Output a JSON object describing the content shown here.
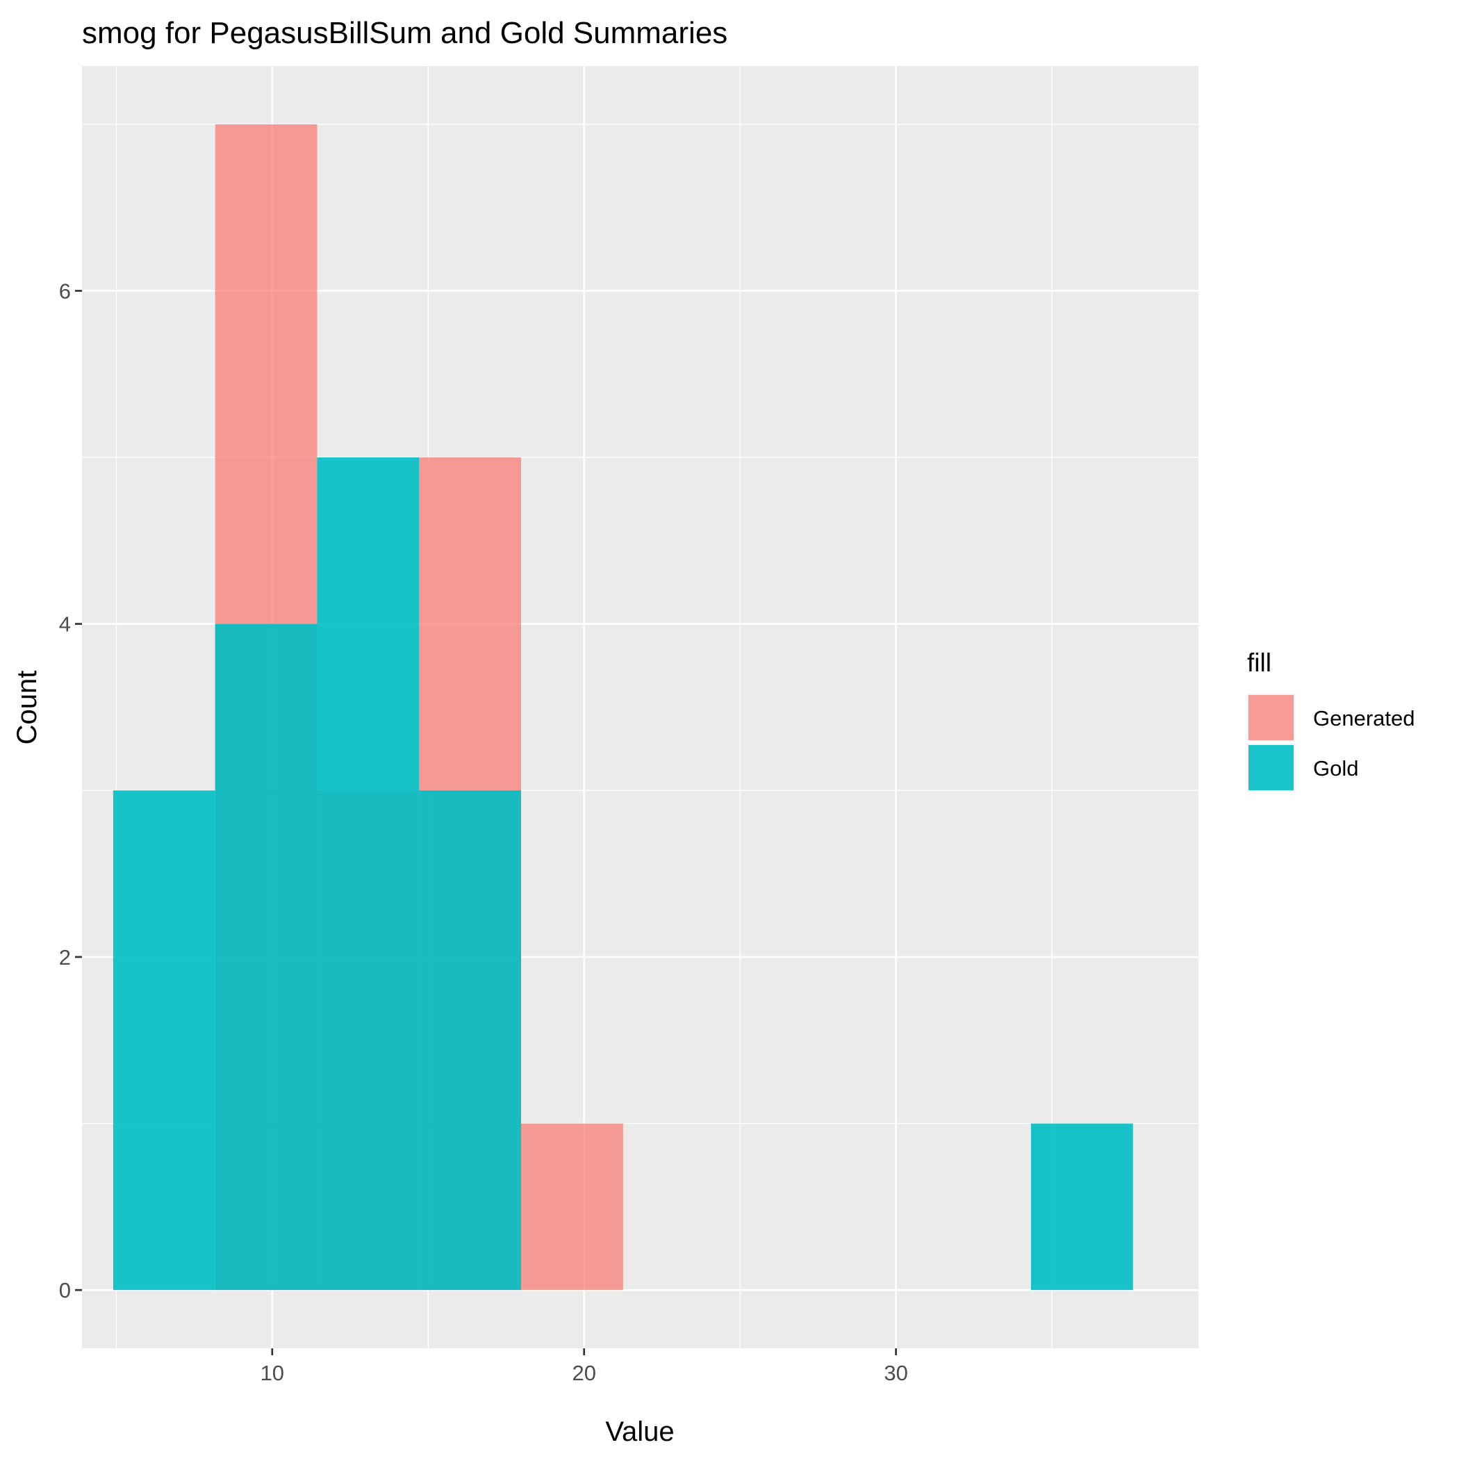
{
  "chart_data": {
    "type": "histogram",
    "title": "smog for PegasusBillSum and Gold Summaries",
    "xlabel": "Value",
    "ylabel": "Count",
    "xlim": [
      3.9,
      39.7
    ],
    "ylim": [
      -0.35,
      7.35
    ],
    "x_ticks": [
      10,
      20,
      30
    ],
    "y_ticks": [
      0,
      2,
      4,
      6
    ],
    "grid": true,
    "bins": [
      [
        4.9,
        8.17
      ],
      [
        8.17,
        11.44
      ],
      [
        11.44,
        14.71
      ],
      [
        14.71,
        17.98
      ],
      [
        17.98,
        21.25
      ],
      [
        21.25,
        24.52
      ],
      [
        24.52,
        27.79
      ],
      [
        27.79,
        31.06
      ],
      [
        31.06,
        34.33
      ],
      [
        34.33,
        37.6
      ]
    ],
    "series": [
      {
        "name": "Generated",
        "color": "#F8766D",
        "opacity": 0.7,
        "values": [
          0,
          7,
          3,
          5,
          1,
          0,
          0,
          0,
          0,
          0
        ]
      },
      {
        "name": "Gold",
        "color": "#00BFC4",
        "opacity": 0.9,
        "values": [
          3,
          4,
          5,
          3,
          0,
          0,
          0,
          0,
          0,
          1
        ]
      }
    ],
    "legend": {
      "title": "fill",
      "position": "right"
    }
  }
}
